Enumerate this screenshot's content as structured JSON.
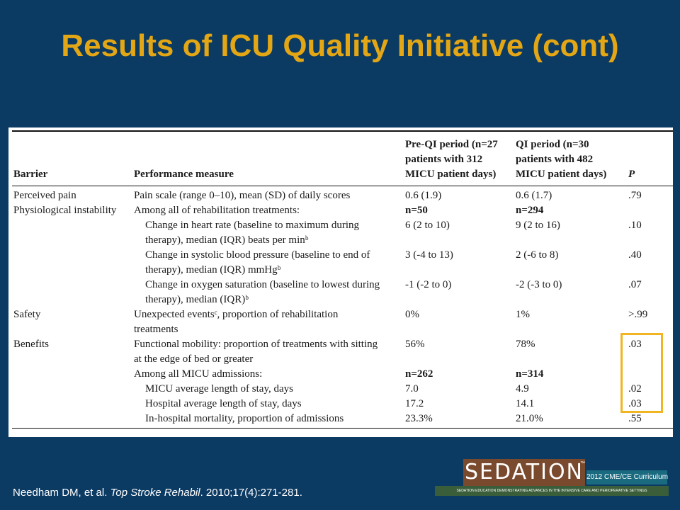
{
  "title": "Results of ICU Quality Initiative (cont)",
  "table": {
    "headers": {
      "barrier": "Barrier",
      "measure": "Performance measure",
      "pre_line1": "Pre-QI period (n=27",
      "pre_line2": "patients with 312",
      "pre_line3": "MICU patient days)",
      "qi_line1": "QI period (n=30",
      "qi_line2": "patients with 482",
      "qi_line3": "MICU patient days)",
      "p": "P"
    },
    "rows": [
      {
        "barrier": "Perceived pain",
        "measure": "Pain scale (range 0–10), mean (SD) of daily scores",
        "pre": "0.6 (1.9)",
        "qi": "0.6 (1.7)",
        "p": ".79"
      },
      {
        "barrier": "Physiological instability",
        "measure": "Among all of rehabilitation treatments:",
        "pre": "n=50",
        "qi": "n=294",
        "p": ""
      },
      {
        "barrier": "",
        "measure": "Change in heart rate (baseline to maximum during",
        "pre": "6 (2 to 10)",
        "qi": "9 (2 to 16)",
        "p": ".10"
      },
      {
        "barrier": "",
        "measure": "therapy), median (IQR) beats per minᵇ",
        "pre": "",
        "qi": "",
        "p": ""
      },
      {
        "barrier": "",
        "measure": "Change in systolic blood pressure (baseline to end of",
        "pre": "3 (-4 to 13)",
        "qi": "2 (-6 to 8)",
        "p": ".40"
      },
      {
        "barrier": "",
        "measure": "therapy), median (IQR) mmHgᵇ",
        "pre": "",
        "qi": "",
        "p": ""
      },
      {
        "barrier": "",
        "measure": "Change in oxygen saturation (baseline to lowest during",
        "pre": "-1 (-2 to 0)",
        "qi": "-2 (-3 to 0)",
        "p": ".07"
      },
      {
        "barrier": "",
        "measure": "therapy), median (IQR)ᵇ",
        "pre": "",
        "qi": "",
        "p": ""
      },
      {
        "barrier": "Safety",
        "measure": "Unexpected eventsᶜ, proportion of rehabilitation",
        "pre": "0%",
        "qi": "1%",
        "p": ">.99"
      },
      {
        "barrier": "",
        "measure": "treatments",
        "pre": "",
        "qi": "",
        "p": ""
      },
      {
        "barrier": "Benefits",
        "measure": "Functional mobility: proportion of treatments with sitting",
        "pre": "56%",
        "qi": "78%",
        "p": ".03"
      },
      {
        "barrier": "",
        "measure": "at the edge of bed or greater",
        "pre": "",
        "qi": "",
        "p": ""
      },
      {
        "barrier": "",
        "measure": "Among all MICU admissions:",
        "pre": "n=262",
        "qi": "n=314",
        "p": ""
      },
      {
        "barrier": "",
        "measure": "MICU average length of stay, days",
        "pre": "7.0",
        "qi": "4.9",
        "p": ".02"
      },
      {
        "barrier": "",
        "measure": "Hospital average length of stay, days",
        "pre": "17.2",
        "qi": "14.1",
        "p": ".03"
      },
      {
        "barrier": "",
        "measure": "In-hospital mortality, proportion of admissions",
        "pre": "23.3%",
        "qi": "21.0%",
        "p": ".55"
      }
    ]
  },
  "citation": {
    "authors": "Needham DM, et al. ",
    "journal": "Top Stroke Rehabil",
    "details": ". 2010;17(4):271-281."
  },
  "logo": {
    "word": "SEDATION",
    "tm": "™",
    "curriculum": "2012 CME/CE Curriculum",
    "tagline": "SEDATION EDUCATION DEMONSTRATING ADVANCES IN THE INTENSIVE CARE AND PERIOPERATIVE SETTINGS"
  },
  "colors": {
    "background": "#0b3a63",
    "title": "#e3a614",
    "highlight_box": "#f0b520"
  }
}
